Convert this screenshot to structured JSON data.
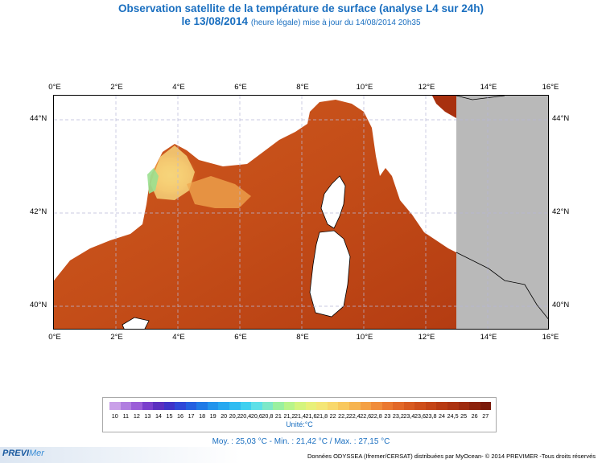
{
  "title": {
    "line1": "Observation satellite de la température de surface (analyse L4 sur 24h)",
    "line2_date": "le 13/08/2014",
    "line2_detail": "(heure légale) mise à jour du 14/08/2014 20h35"
  },
  "map": {
    "lon_labels": [
      "0°E",
      "2°E",
      "4°E",
      "6°E",
      "8°E",
      "10°E",
      "12°E",
      "14°E",
      "16°E"
    ],
    "lat_labels": [
      "44°N",
      "42°N",
      "40°N"
    ],
    "lon_range": [
      0,
      16
    ],
    "lat_range": [
      39.5,
      44.5
    ],
    "sst_data_east_limit_lon": 13,
    "legend_position": "bottom"
  },
  "colorbar": {
    "labels": [
      "10",
      "11",
      "12",
      "13",
      "14",
      "15",
      "16",
      "17",
      "18",
      "19",
      "20",
      "20,2",
      "20,4",
      "20,6",
      "20,8",
      "21",
      "21,2",
      "21,4",
      "21,6",
      "21,8",
      "22",
      "22,2",
      "22,4",
      "22,6",
      "22,8",
      "23",
      "23,2",
      "23,4",
      "23,6",
      "23,8",
      "24",
      "24,5",
      "25",
      "26",
      "27"
    ],
    "colors": [
      "#c9a0e8",
      "#b07ee0",
      "#9b5ed8",
      "#7a3fcc",
      "#5b2fc0",
      "#3f33c8",
      "#2f48d8",
      "#2460e0",
      "#1f7ae6",
      "#2294ec",
      "#26a8f0",
      "#2fbcf2",
      "#3fd0f0",
      "#5ee0e8",
      "#7ee8c8",
      "#9af0a0",
      "#b8f48a",
      "#d4f47e",
      "#e8f07a",
      "#f4e676",
      "#f8d86c",
      "#f8c85e",
      "#f6b450",
      "#f4a044",
      "#f08c3a",
      "#ea7830",
      "#e26828",
      "#d85a20",
      "#ce4e1a",
      "#c44416",
      "#b83a12",
      "#ac3210",
      "#9e2a0e",
      "#8c220c",
      "#7a1a0a"
    ],
    "unit": "Unité:°C"
  },
  "stats": {
    "text": "Moy. : 25,03 °C   -   Min. : 21,42 °C / Max. : 27,15 °C"
  },
  "footer": {
    "logo_prefix": "PREVI",
    "logo_suffix": "Mer",
    "credits": "Données ODYSSEA (Ifremer/CERSAT) distribuées par MyOcean- © 2014 PREVIMER -Tous droits réservés"
  }
}
